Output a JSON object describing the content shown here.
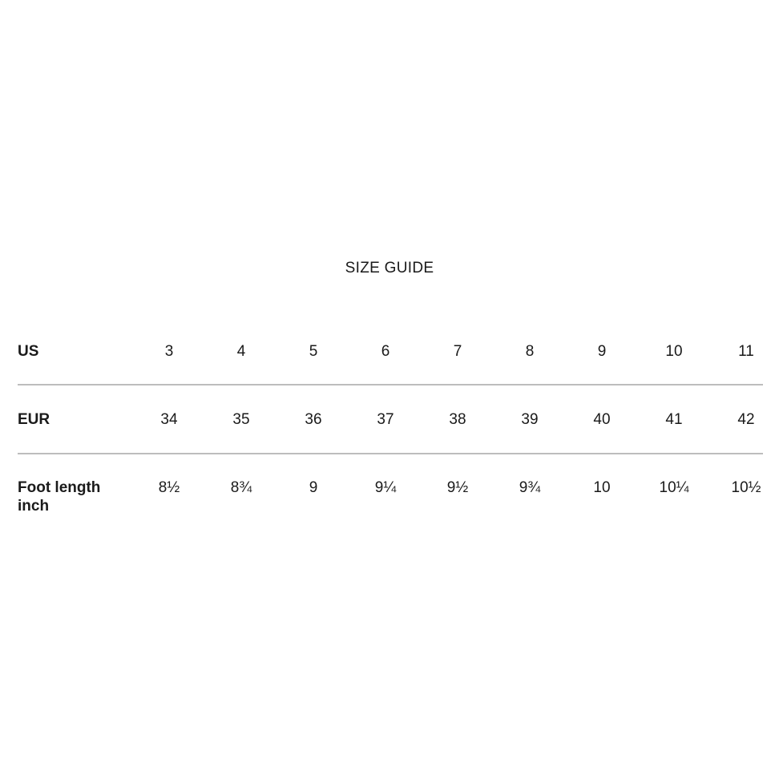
{
  "title": "SIZE GUIDE",
  "colors": {
    "background": "#ffffff",
    "text": "#1a1a1a",
    "divider": "#bdbdbd"
  },
  "table": {
    "rows": [
      {
        "label": "US",
        "values": [
          "3",
          "4",
          "5",
          "6",
          "7",
          "8",
          "9",
          "10",
          "11"
        ]
      },
      {
        "label": "EUR",
        "values": [
          "34",
          "35",
          "36",
          "37",
          "38",
          "39",
          "40",
          "41",
          "42"
        ]
      },
      {
        "label": "Foot length inch",
        "values": [
          "8½",
          "8¾",
          "9",
          "9¼",
          "9½",
          "9¾",
          "10",
          "10¼",
          "10½"
        ]
      }
    ]
  }
}
